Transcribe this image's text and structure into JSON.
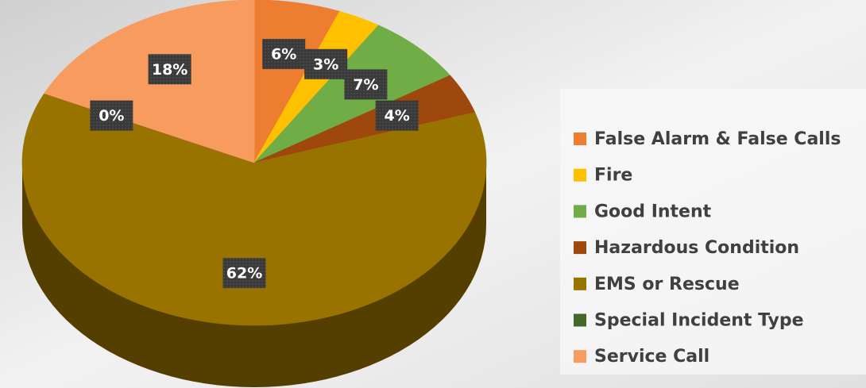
{
  "chart_data": {
    "type": "pie",
    "categories": [
      "False Alarm & False Calls",
      "Fire",
      "Good Intent",
      "Hazardous Condition",
      "EMS or Rescue",
      "Special Incident Type",
      "Service Call"
    ],
    "values": [
      6,
      3,
      7,
      4,
      62,
      0,
      18
    ],
    "value_labels": [
      "6%",
      "3%",
      "7%",
      "4%",
      "62%",
      "0%",
      "18%"
    ],
    "colors": [
      "#ed7d31",
      "#ffc000",
      "#70ad47",
      "#9e480e",
      "#997300",
      "#43682b",
      "#f79b5e"
    ],
    "legend": "right"
  }
}
